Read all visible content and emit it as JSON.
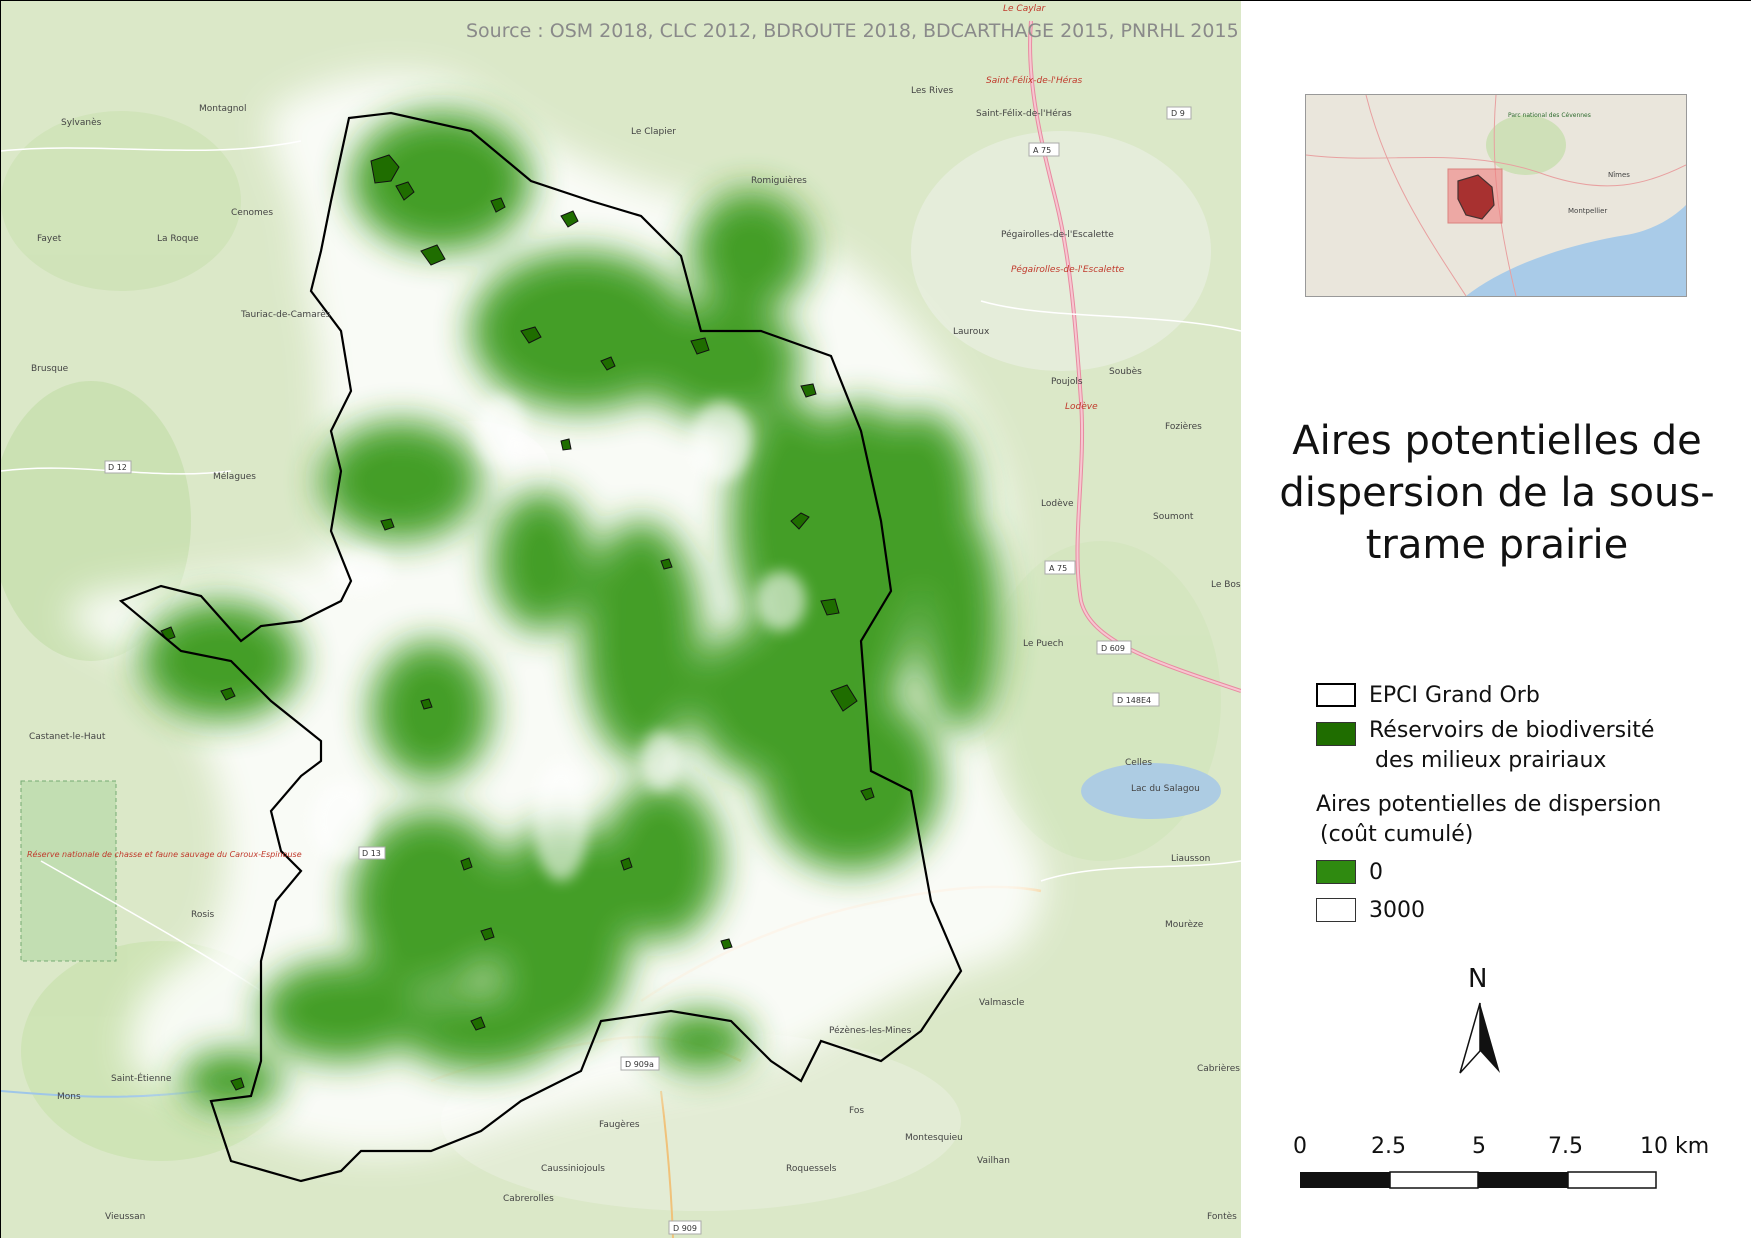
{
  "map": {
    "source_text": "Source : OSM 2018, CLC 2012, BDROUTE 2018, BDCARTHAGE 2015, PNRHL 2015",
    "place_labels": [
      "Le Caylar",
      "Saint-Félix-de-l'Héras",
      "Les Rives",
      "Saint-Félix-de-l'Héras",
      "Montagnol",
      "Sylvanès",
      "Le Clapier",
      "Romiguières",
      "Cenomes",
      "Fayet",
      "La Roque",
      "Pégairolles-de-l'Escalette",
      "Pégairolles-de-l'Escalette",
      "Tauriac-de-Camarès",
      "Brusque",
      "Lauroux",
      "Soubès",
      "Poujols",
      "Lodève",
      "Fozières",
      "Mélagues",
      "Lodève",
      "Soumont",
      "Le Bosc",
      "Le Puech",
      "Castanet-le-Haut",
      "Celles",
      "Lac du Salagou",
      "Réserve nationale de chasse et faune sauvage du Caroux-Espinouse",
      "Liausson",
      "Rosis",
      "Mourèze",
      "Valmascle",
      "Pézènes-les-Mines",
      "Mons",
      "Saint-Étienne",
      "Faugères",
      "Fos",
      "Montesquieu",
      "Caussiniojouls",
      "Roquessels",
      "Vailhan",
      "Cabrerolles",
      "Vieussan",
      "Cabrières",
      "Fontès"
    ],
    "road_labels": [
      "D 9",
      "A 75",
      "A 75",
      "D 12",
      "D 609",
      "D 148E4",
      "D 13",
      "D 909a",
      "D 909"
    ]
  },
  "legend": {
    "title": "Aires potentielles de dispersion de la sous-trame prairie",
    "epci_label": "EPCI Grand Orb",
    "reservoirs_label_line1": "Réservoirs de biodiversité",
    "reservoirs_label_line2": "des milieux prairiaux",
    "dispersion_title_line1": "Aires potentielles de dispersion",
    "dispersion_title_line2": "(coût cumulé)",
    "gradient_min": "0",
    "gradient_max": "3000",
    "colors": {
      "reservoir": "#1f6d00",
      "dispersion_low": "#2f8a10",
      "dispersion_high": "#ffffff"
    }
  },
  "north_arrow": {
    "label": "N"
  },
  "scale_bar": {
    "ticks": [
      "0",
      "2.5",
      "5",
      "7.5",
      "10 km"
    ]
  },
  "overview_map": {
    "labels": [
      "Parc national des Cévennes",
      "Nîmes",
      "Montpellier"
    ]
  }
}
